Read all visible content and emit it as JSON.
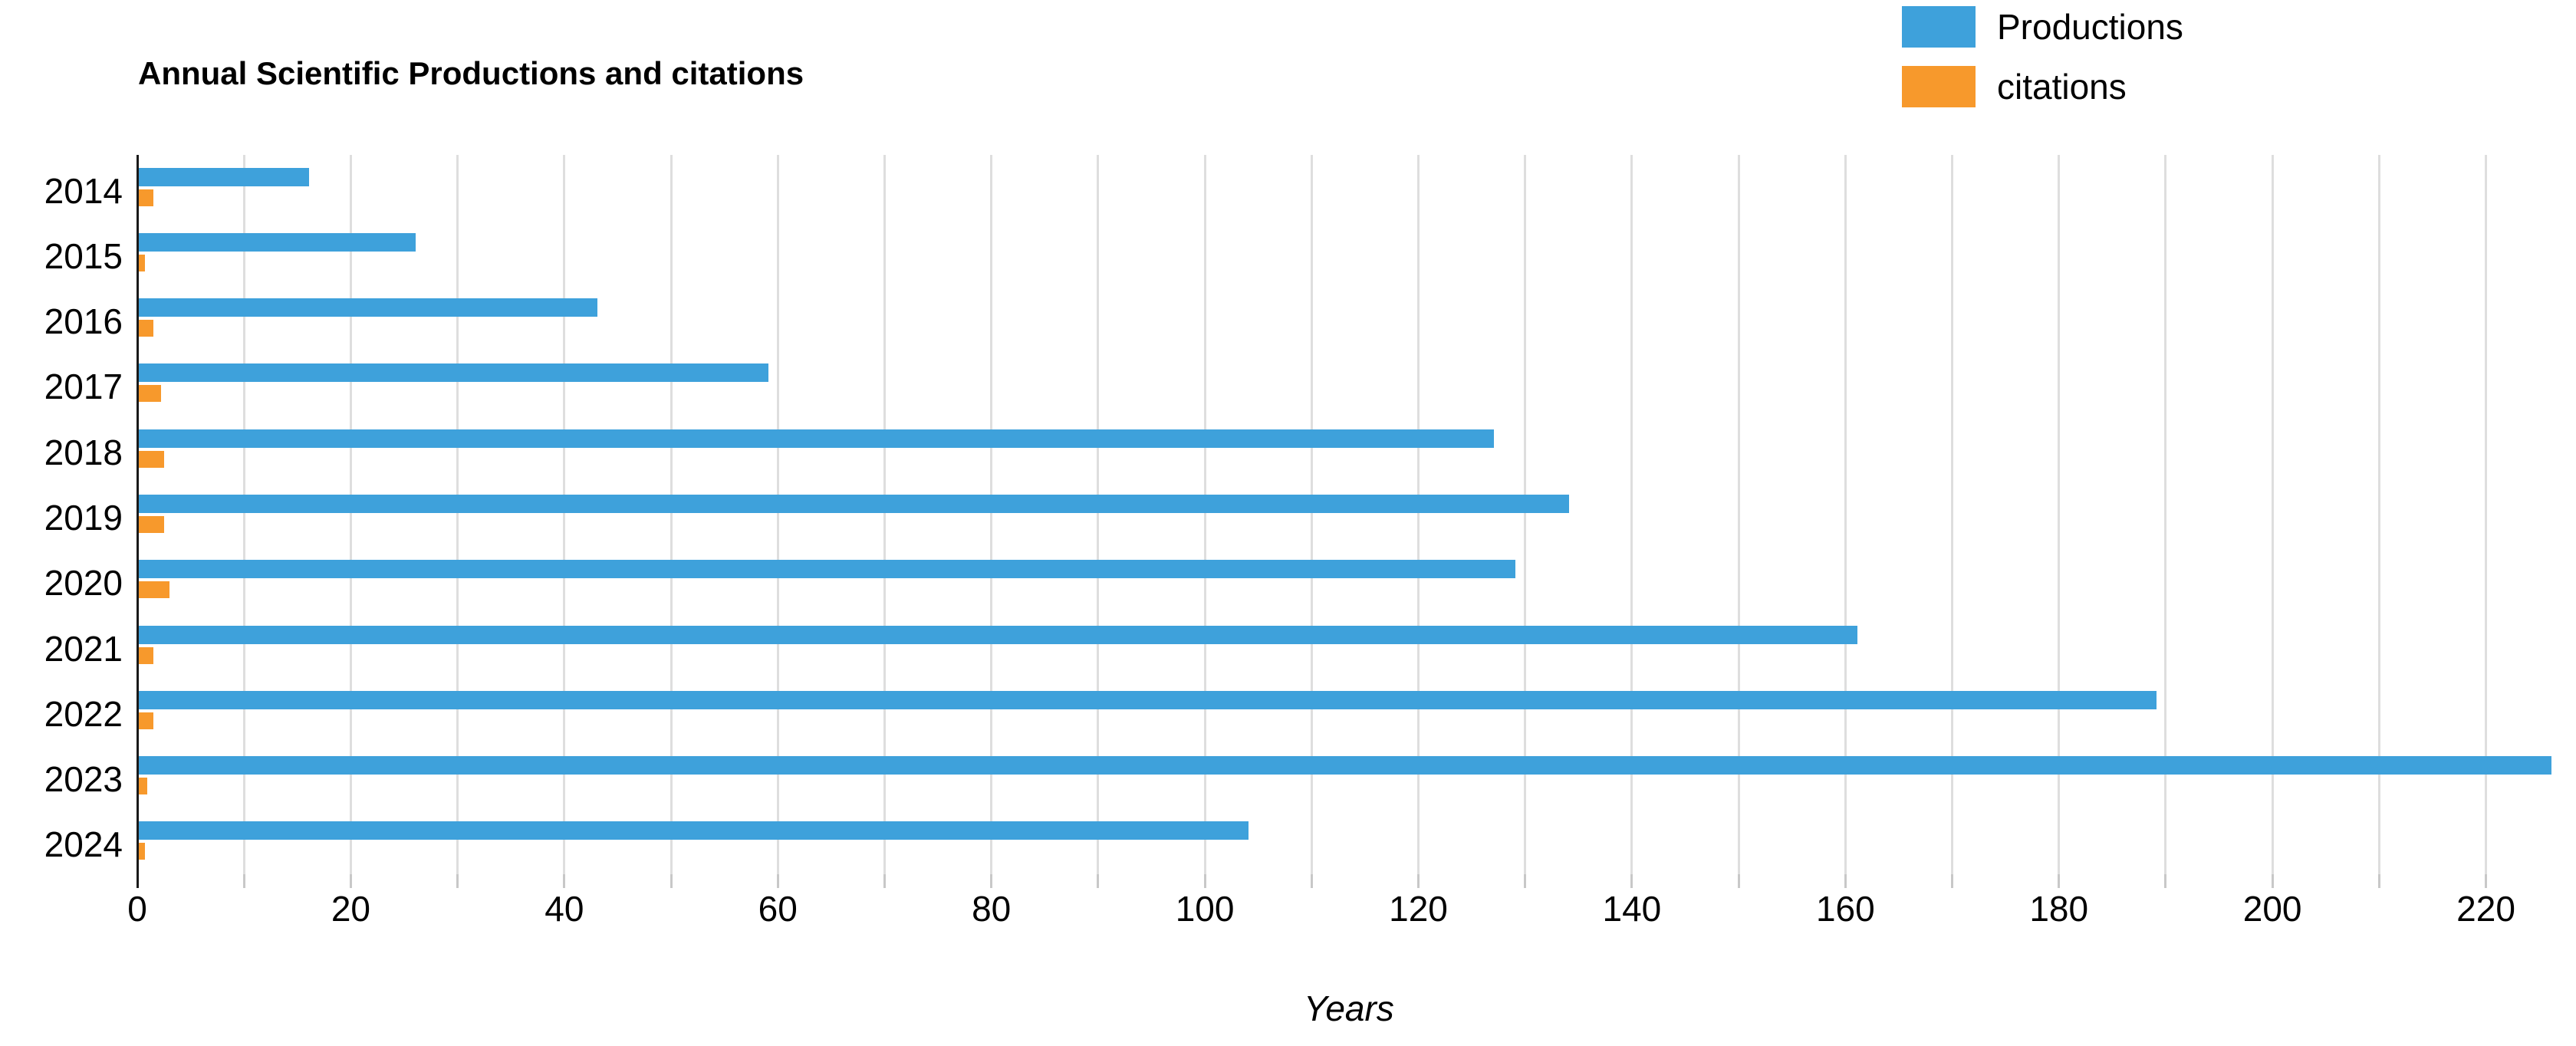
{
  "page": {
    "background": "#ffffff"
  },
  "chart_data": {
    "type": "bar",
    "orientation": "horizontal",
    "title": "Annual Scientific Productions and citations",
    "xlabel": "Years",
    "categories": [
      "2014",
      "2015",
      "2016",
      "2017",
      "2018",
      "2019",
      "2020",
      "2021",
      "2022",
      "2023",
      "2024"
    ],
    "series": [
      {
        "name": "Productions",
        "color": "#3EA1DB",
        "values": [
          16,
          26,
          43,
          59,
          127,
          134,
          129,
          161,
          189,
          226,
          104
        ]
      },
      {
        "name": "citations",
        "color": "#F7992C",
        "values": [
          1.4,
          0.6,
          1.4,
          2.1,
          2.4,
          2.4,
          2.9,
          1.4,
          1.4,
          0.8,
          0.6
        ]
      }
    ],
    "xlim": [
      0,
      227
    ],
    "x_ticks": [
      0,
      20,
      40,
      60,
      80,
      100,
      120,
      140,
      160,
      180,
      200,
      220
    ],
    "gridline_step": 10,
    "grid": true,
    "legend_position": "top-right",
    "colors": {
      "gridline": "#dedede",
      "axis_line": "#1a1a1a",
      "tick": "#c8c8c8",
      "text": "#000000"
    }
  }
}
